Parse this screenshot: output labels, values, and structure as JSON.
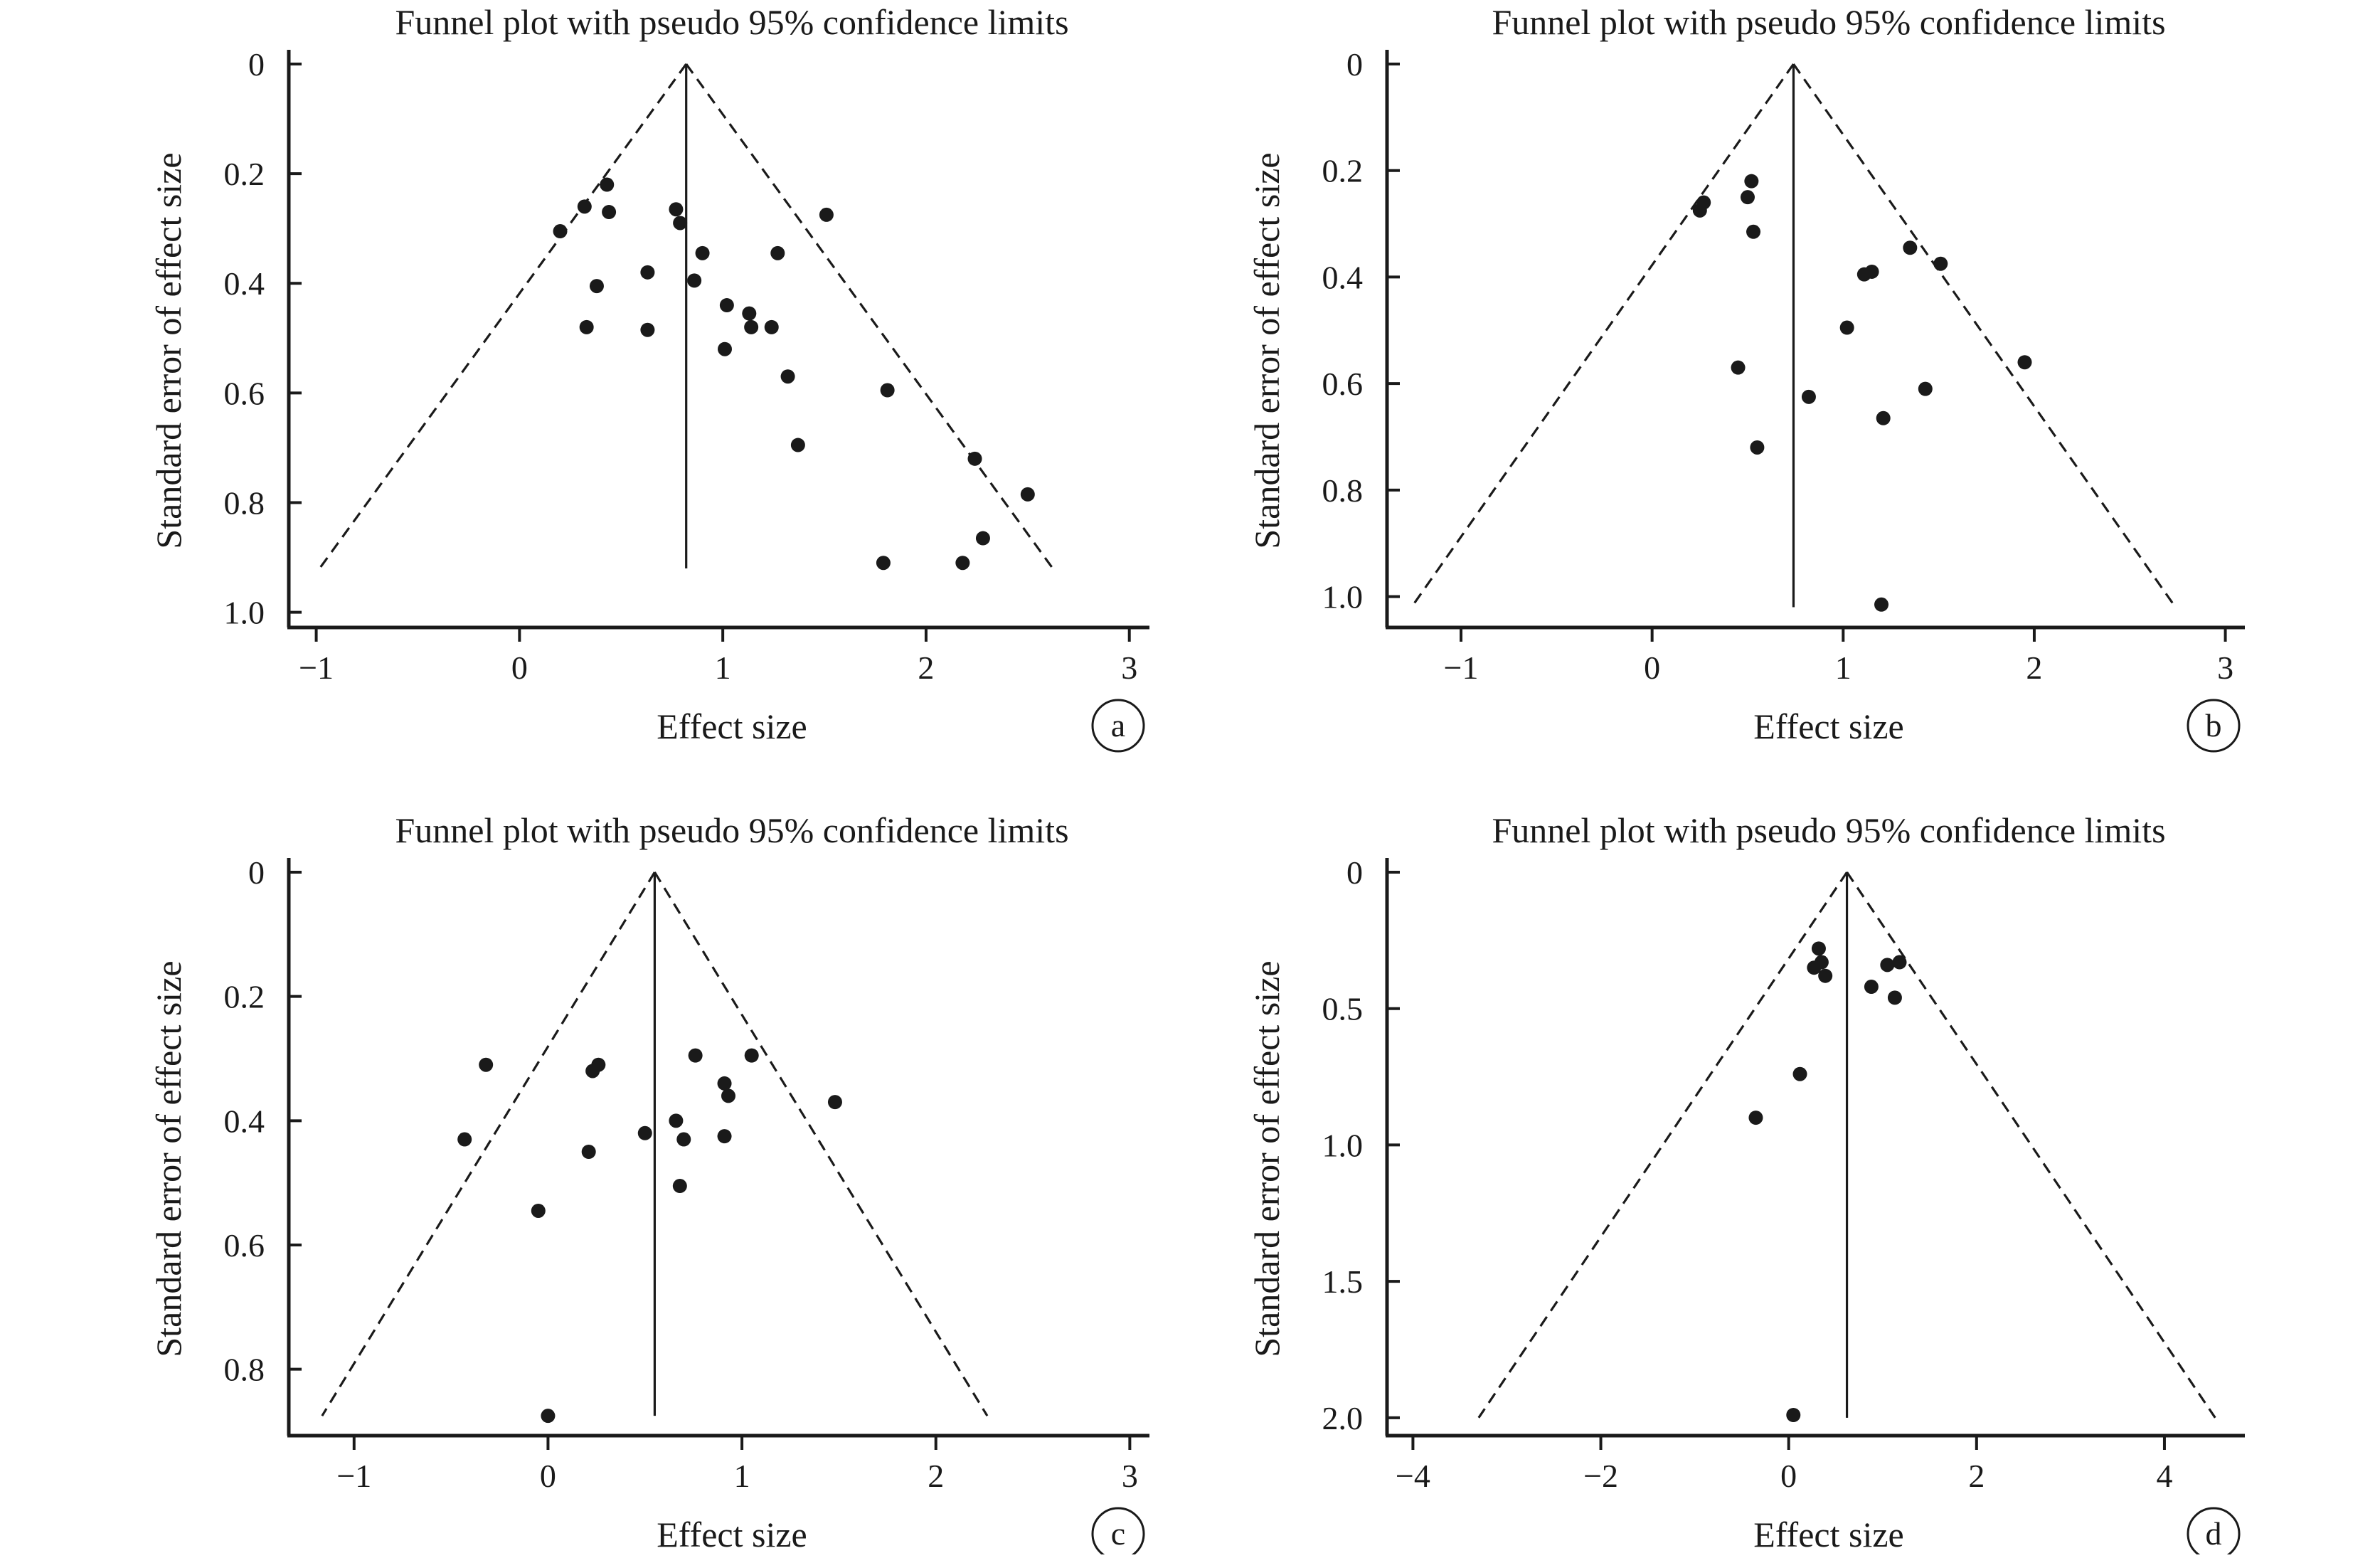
{
  "chart_data": [
    {
      "id": "a",
      "type": "scatter",
      "title": "Funnel plot with pseudo 95% confidence limits",
      "xlabel": "Effect size",
      "ylabel": "Standard error of effect size",
      "panel_label": "a",
      "xlim": [
        -1.1,
        3.05
      ],
      "ylim": [
        0,
        1.02
      ],
      "y_inverted": true,
      "xticks": [
        -1,
        0,
        1,
        2,
        3
      ],
      "yticks": [
        0,
        0.2,
        0.4,
        0.6,
        0.8,
        1.0
      ],
      "ytick_labels": [
        "0",
        "0.2",
        "0.4",
        "0.6",
        "0.8",
        "1.0"
      ],
      "pooled_effect": 0.82,
      "ci_max_se": 0.92,
      "grid": false,
      "points": [
        {
          "x": 0.2,
          "y": 0.305
        },
        {
          "x": 0.32,
          "y": 0.26
        },
        {
          "x": 0.43,
          "y": 0.22
        },
        {
          "x": 0.44,
          "y": 0.27
        },
        {
          "x": 0.38,
          "y": 0.405
        },
        {
          "x": 0.33,
          "y": 0.48
        },
        {
          "x": 0.63,
          "y": 0.38
        },
        {
          "x": 0.63,
          "y": 0.485
        },
        {
          "x": 0.77,
          "y": 0.265
        },
        {
          "x": 0.79,
          "y": 0.29
        },
        {
          "x": 0.86,
          "y": 0.395
        },
        {
          "x": 0.9,
          "y": 0.345
        },
        {
          "x": 1.02,
          "y": 0.44
        },
        {
          "x": 1.01,
          "y": 0.52
        },
        {
          "x": 1.13,
          "y": 0.455
        },
        {
          "x": 1.14,
          "y": 0.48
        },
        {
          "x": 1.24,
          "y": 0.48
        },
        {
          "x": 1.27,
          "y": 0.345
        },
        {
          "x": 1.32,
          "y": 0.57
        },
        {
          "x": 1.37,
          "y": 0.695
        },
        {
          "x": 1.51,
          "y": 0.275
        },
        {
          "x": 1.81,
          "y": 0.595
        },
        {
          "x": 1.79,
          "y": 0.91
        },
        {
          "x": 2.18,
          "y": 0.91
        },
        {
          "x": 2.24,
          "y": 0.72
        },
        {
          "x": 2.28,
          "y": 0.865
        },
        {
          "x": 2.5,
          "y": 0.785
        }
      ]
    },
    {
      "id": "b",
      "type": "scatter",
      "title": "Funnel plot with pseudo 95% confidence limits",
      "xlabel": "Effect size",
      "ylabel": "Standard error of effect size",
      "panel_label": "b",
      "xlim": [
        -1.35,
        3.05
      ],
      "ylim": [
        0,
        1.05
      ],
      "y_inverted": true,
      "xticks": [
        -1,
        0,
        1,
        2,
        3
      ],
      "yticks": [
        0,
        0.2,
        0.4,
        0.6,
        0.8,
        1.0
      ],
      "ytick_labels": [
        "0",
        "0.2",
        "0.4",
        "0.6",
        "0.8",
        "1.0"
      ],
      "pooled_effect": 0.74,
      "ci_max_se": 1.02,
      "grid": false,
      "points": [
        {
          "x": 0.25,
          "y": 0.275
        },
        {
          "x": 0.27,
          "y": 0.26
        },
        {
          "x": 0.5,
          "y": 0.25
        },
        {
          "x": 0.52,
          "y": 0.22
        },
        {
          "x": 0.53,
          "y": 0.315
        },
        {
          "x": 0.45,
          "y": 0.57
        },
        {
          "x": 0.55,
          "y": 0.72
        },
        {
          "x": 0.82,
          "y": 0.625
        },
        {
          "x": 1.02,
          "y": 0.495
        },
        {
          "x": 1.11,
          "y": 0.395
        },
        {
          "x": 1.15,
          "y": 0.39
        },
        {
          "x": 1.21,
          "y": 0.665
        },
        {
          "x": 1.35,
          "y": 0.345
        },
        {
          "x": 1.51,
          "y": 0.375
        },
        {
          "x": 1.43,
          "y": 0.61
        },
        {
          "x": 1.95,
          "y": 0.56
        },
        {
          "x": 1.2,
          "y": 1.015
        }
      ]
    },
    {
      "id": "c",
      "type": "scatter",
      "title": "Funnel plot with pseudo 95% confidence limits",
      "xlabel": "Effect size",
      "ylabel": "Standard error of effect size",
      "panel_label": "c",
      "xlim": [
        -1.3,
        3.05
      ],
      "ylim": [
        0,
        0.9
      ],
      "y_inverted": true,
      "xticks": [
        -1,
        0,
        1,
        2,
        3
      ],
      "yticks": [
        0,
        0.2,
        0.4,
        0.6,
        0.8
      ],
      "ytick_labels": [
        "0",
        "0.2",
        "0.4",
        "0.6",
        "0.8"
      ],
      "pooled_effect": 0.55,
      "ci_max_se": 0.875,
      "grid": false,
      "points": [
        {
          "x": -0.32,
          "y": 0.31
        },
        {
          "x": -0.43,
          "y": 0.43
        },
        {
          "x": -0.05,
          "y": 0.545
        },
        {
          "x": 0.0,
          "y": 0.875
        },
        {
          "x": 0.23,
          "y": 0.32
        },
        {
          "x": 0.26,
          "y": 0.31
        },
        {
          "x": 0.21,
          "y": 0.45
        },
        {
          "x": 0.5,
          "y": 0.42
        },
        {
          "x": 0.66,
          "y": 0.4
        },
        {
          "x": 0.7,
          "y": 0.43
        },
        {
          "x": 0.68,
          "y": 0.505
        },
        {
          "x": 0.76,
          "y": 0.295
        },
        {
          "x": 0.91,
          "y": 0.34
        },
        {
          "x": 0.93,
          "y": 0.36
        },
        {
          "x": 0.91,
          "y": 0.425
        },
        {
          "x": 1.05,
          "y": 0.295
        },
        {
          "x": 1.48,
          "y": 0.37
        }
      ]
    },
    {
      "id": "d",
      "type": "scatter",
      "title": "Funnel plot with pseudo 95% confidence limits",
      "xlabel": "Effect size",
      "ylabel": "Standard error of effect size",
      "panel_label": "d",
      "xlim": [
        -4.2,
        4.75
      ],
      "ylim": [
        0,
        2.05
      ],
      "y_inverted": true,
      "xticks": [
        -4,
        -2,
        0,
        2,
        4
      ],
      "xtick_labels": [
        "−4",
        "−2",
        "0",
        "2",
        "4"
      ],
      "yticks": [
        0,
        0.5,
        1.0,
        1.5,
        2.0
      ],
      "ytick_labels": [
        "0",
        "0.5",
        "1.0",
        "1.5",
        "2.0"
      ],
      "pooled_effect": 0.62,
      "ci_max_se": 2.0,
      "grid": false,
      "points": [
        {
          "x": 0.32,
          "y": 0.28
        },
        {
          "x": 0.35,
          "y": 0.33
        },
        {
          "x": 0.27,
          "y": 0.35
        },
        {
          "x": 0.39,
          "y": 0.38
        },
        {
          "x": 0.88,
          "y": 0.42
        },
        {
          "x": 1.05,
          "y": 0.34
        },
        {
          "x": 1.18,
          "y": 0.33
        },
        {
          "x": 1.13,
          "y": 0.46
        },
        {
          "x": 0.12,
          "y": 0.74
        },
        {
          "x": -0.35,
          "y": 0.9
        },
        {
          "x": 0.05,
          "y": 1.99
        }
      ]
    }
  ]
}
